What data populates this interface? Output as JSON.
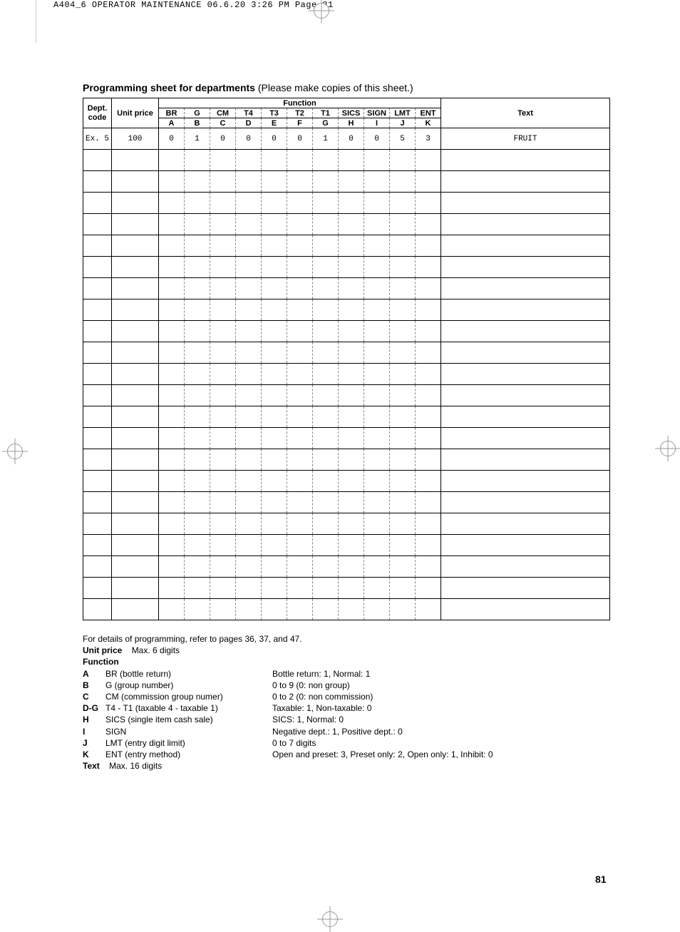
{
  "header": {
    "text": "A404_6 OPERATOR MAINTENANCE  06.6.20 3:26 PM  Page 81"
  },
  "title": {
    "bold": "Programming sheet for departments",
    "rest": " (Please make copies of this sheet.)"
  },
  "table": {
    "col_headers": {
      "dept": "Dept.\ncode",
      "unit_price": "Unit price",
      "function": "Function",
      "text": "Text",
      "fn_top": [
        "BR",
        "G",
        "CM",
        "T4",
        "T3",
        "T2",
        "T1",
        "SICS",
        "SIGN",
        "LMT",
        "ENT"
      ],
      "fn_bottom": [
        "A",
        "B",
        "C",
        "D",
        "E",
        "F",
        "G",
        "H",
        "I",
        "J",
        "K"
      ]
    },
    "example_row": {
      "dept": "Ex. 5",
      "price": "100",
      "fns": [
        "0",
        "1",
        "0",
        "0",
        "0",
        "0",
        "1",
        "0",
        "0",
        "5",
        "3"
      ],
      "text": "FRUIT"
    },
    "blank_rows": 22
  },
  "legend": {
    "intro": "For details of programming, refer to pages 36, 37, and 47.",
    "unit_price_label": "Unit price",
    "unit_price_desc": "Max. 6 digits",
    "function_label": "Function",
    "rows": [
      {
        "k": "A",
        "n": "BR (bottle return)",
        "d": "Bottle return: 1, Normal: 1"
      },
      {
        "k": "B",
        "n": "G (group number)",
        "d": "0 to 9 (0: non group)"
      },
      {
        "k": "C",
        "n": "CM (commission group numer)",
        "d": "0 to 2 (0: non commission)"
      },
      {
        "k": "D-G",
        "n": "T4 - T1 (taxable 4 - taxable 1)",
        "d": "Taxable: 1, Non-taxable: 0"
      },
      {
        "k": "H",
        "n": "SICS (single item cash sale)",
        "d": "SICS: 1, Normal: 0"
      },
      {
        "k": "I",
        "n": "SIGN",
        "d": "Negative dept.: 1, Positive dept.: 0"
      },
      {
        "k": "J",
        "n": "LMT (entry digit limit)",
        "d": "0 to 7 digits"
      },
      {
        "k": "K",
        "n": "ENT (entry method)",
        "d": "Open and preset: 3, Preset only: 2, Open only: 1, Inhibit: 0"
      }
    ],
    "text_label": "Text",
    "text_desc": "Max. 16 digits"
  },
  "page_number": "81"
}
